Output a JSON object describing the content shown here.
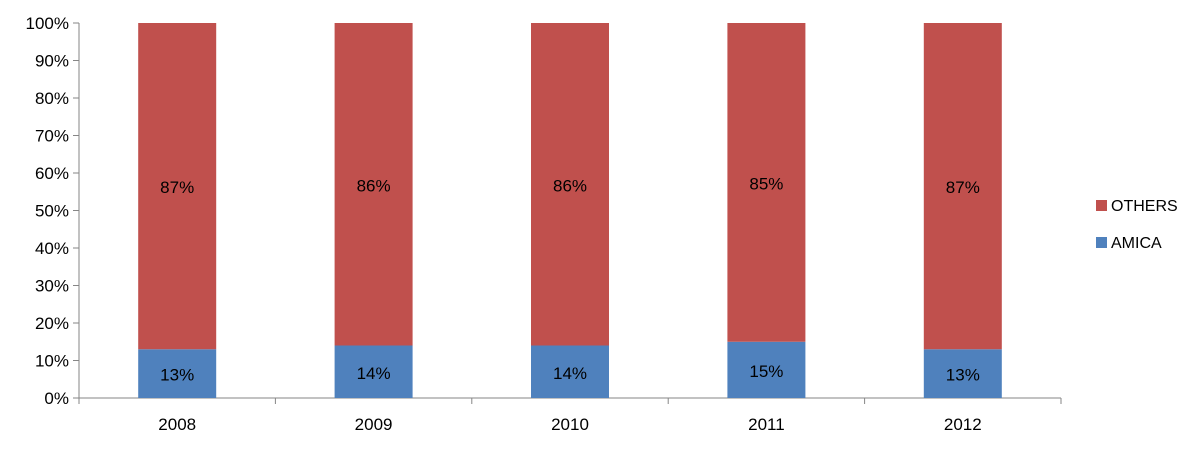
{
  "chart_data": {
    "type": "bar",
    "stacked": true,
    "percent_stacked": true,
    "title": "",
    "xlabel": "",
    "ylabel": "",
    "categories": [
      "2008",
      "2009",
      "2010",
      "2011",
      "2012"
    ],
    "ylim": [
      0,
      100
    ],
    "yticks": [
      "0%",
      "10%",
      "20%",
      "30%",
      "40%",
      "50%",
      "60%",
      "70%",
      "80%",
      "90%",
      "100%"
    ],
    "grid": false,
    "legend_position": "right",
    "series": [
      {
        "name": "AMICA",
        "color": "#4F81BD",
        "values": [
          13,
          14,
          14,
          15,
          13
        ],
        "labels": [
          "13%",
          "14%",
          "14%",
          "15%",
          "13%"
        ]
      },
      {
        "name": "OTHERS",
        "color": "#C0504D",
        "values": [
          87,
          86,
          86,
          85,
          87
        ],
        "labels": [
          "87%",
          "86%",
          "86%",
          "85%",
          "87%"
        ]
      }
    ]
  }
}
